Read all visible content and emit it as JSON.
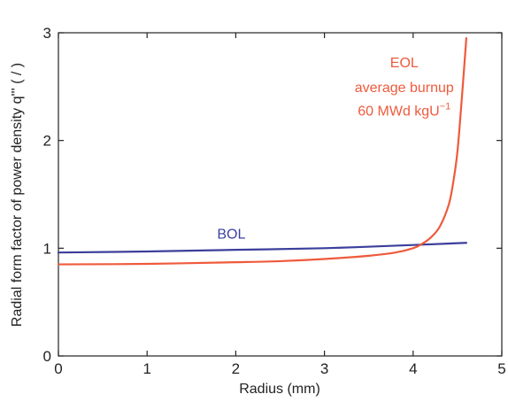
{
  "chart_data": {
    "type": "line",
    "title": "",
    "xlabel": "Radius (mm)",
    "ylabel": "Radial form factor of power density q''' ( / )",
    "xlim": [
      0,
      5
    ],
    "ylim": [
      0,
      3
    ],
    "x_ticks": [
      "0",
      "1",
      "2",
      "3",
      "4",
      "5"
    ],
    "y_ticks": [
      "0",
      "1",
      "2",
      "3"
    ],
    "grid": false,
    "series": [
      {
        "name": "BOL",
        "color": "#3b3f9b",
        "x": [
          0,
          1,
          2,
          3,
          4,
          4.6
        ],
        "y": [
          0.96,
          0.97,
          0.985,
          1.0,
          1.03,
          1.05
        ]
      },
      {
        "name": "EOL",
        "color": "#ef5a3c",
        "x": [
          0,
          1,
          2,
          2.5,
          3,
          3.5,
          3.8,
          4.0,
          4.1,
          4.2,
          4.3,
          4.4,
          4.45,
          4.5,
          4.55,
          4.6
        ],
        "y": [
          0.85,
          0.855,
          0.87,
          0.88,
          0.9,
          0.93,
          0.96,
          1.0,
          1.04,
          1.1,
          1.2,
          1.4,
          1.6,
          1.9,
          2.4,
          2.95
        ]
      }
    ],
    "annotations": [
      {
        "text": "BOL",
        "color": "#3b3f9b",
        "x": 1.95,
        "y": 1.09,
        "anchor": "middle"
      },
      {
        "text": "EOL",
        "color": "#ef5a3c",
        "x": 3.9,
        "y": 2.68,
        "anchor": "middle"
      },
      {
        "text": "average burnup",
        "color": "#ef5a3c",
        "x": 3.9,
        "y": 2.45,
        "anchor": "middle"
      },
      {
        "text": "60 MWd kgU",
        "sup": "−1",
        "color": "#ef5a3c",
        "x": 3.9,
        "y": 2.23,
        "anchor": "middle"
      }
    ]
  }
}
